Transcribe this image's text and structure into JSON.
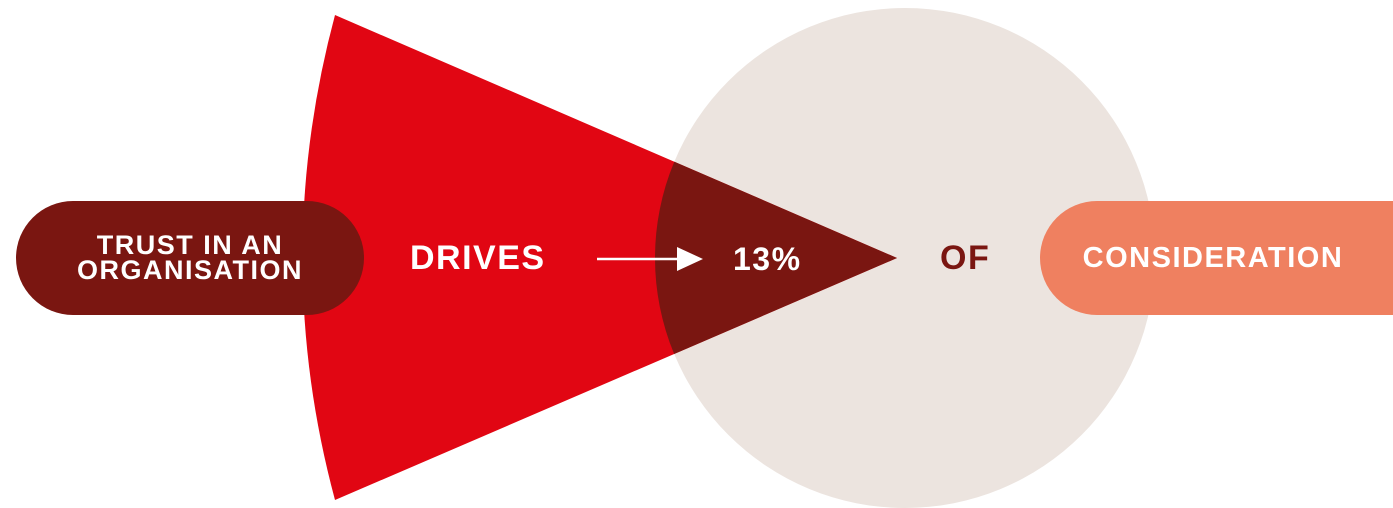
{
  "subject": {
    "line1": "TRUST IN AN",
    "line2": "ORGANISATION"
  },
  "verb": "DRIVES",
  "percentage": {
    "value": 13,
    "label": "13%"
  },
  "connector": "OF",
  "outcome": "CONSIDERATION",
  "colors": {
    "red": "#E10613",
    "dark_red": "#7A1611",
    "circle": "#ECE4DF",
    "salmon": "#EF8060",
    "text_light": "#FFFFFF"
  },
  "icons": {
    "arrow": "right-arrow-icon"
  }
}
